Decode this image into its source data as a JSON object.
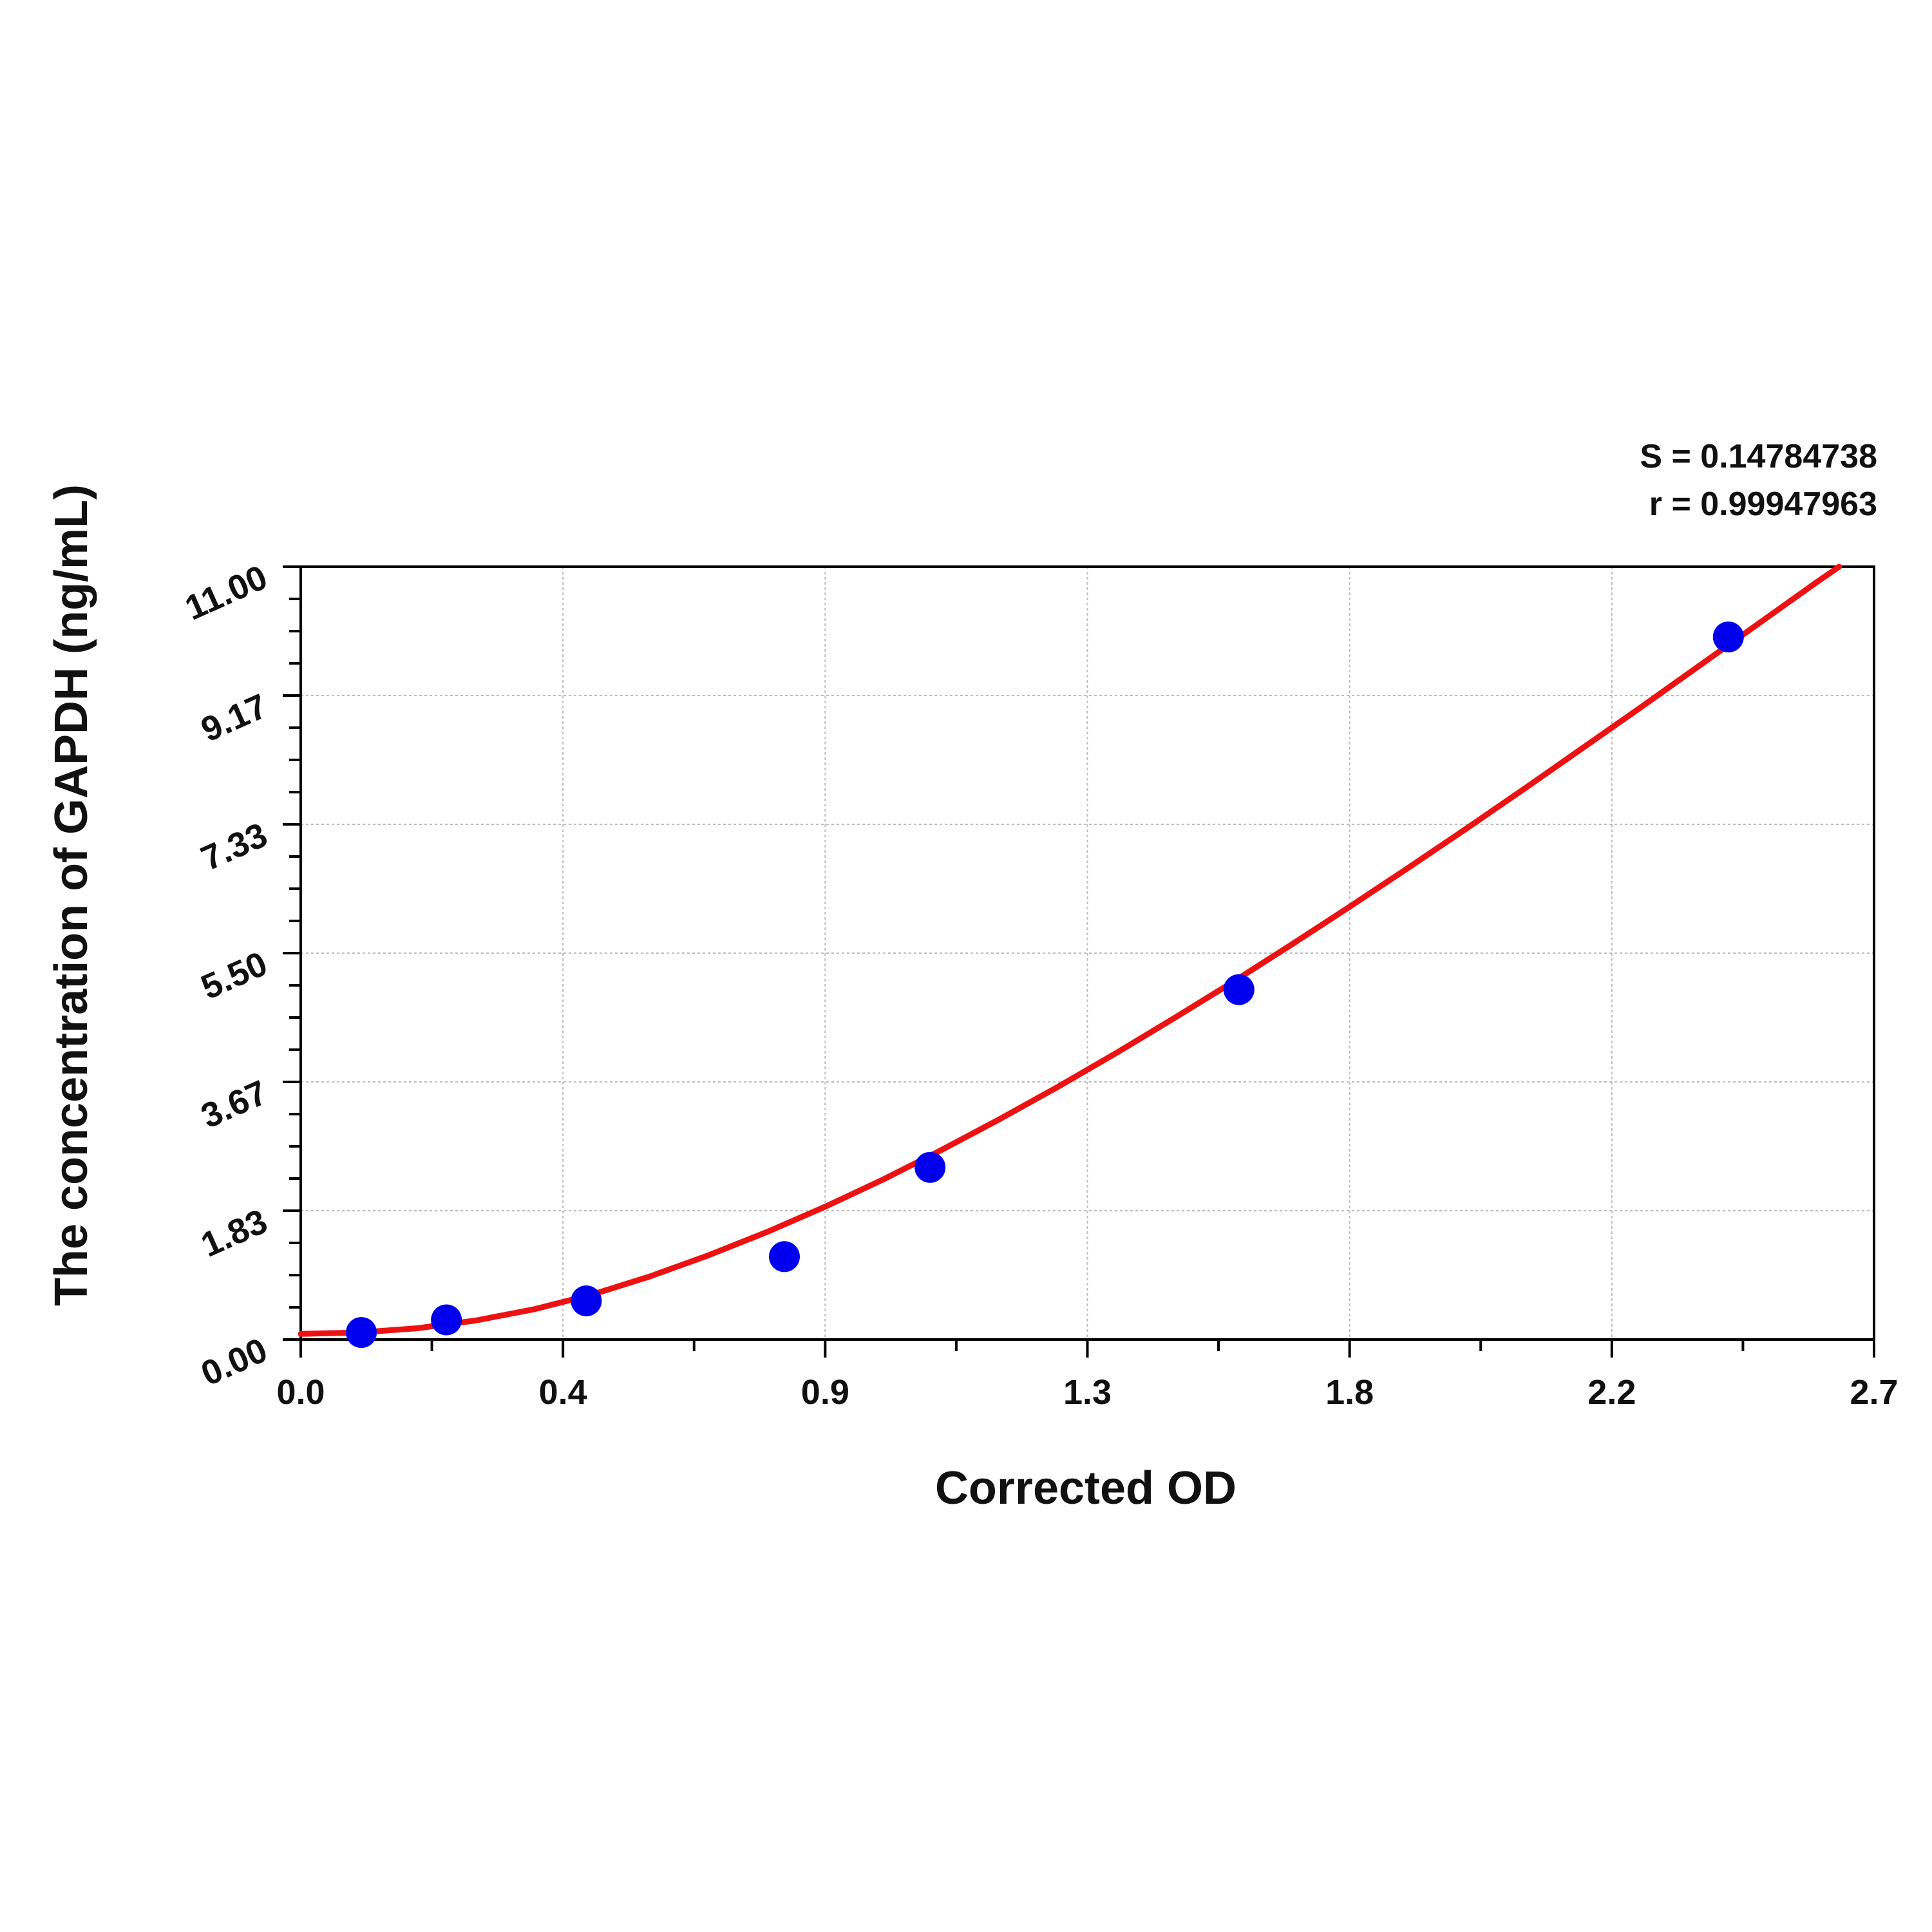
{
  "chart_data": {
    "type": "scatter",
    "xlabel": "Corrected OD",
    "ylabel": "The concentration of GAPDH (ng/mL)",
    "xlim": [
      0.0,
      2.7
    ],
    "ylim": [
      0.0,
      11.0
    ],
    "x_ticks": [
      "0.0",
      "0.4",
      "0.9",
      "1.3",
      "1.8",
      "2.2",
      "2.7"
    ],
    "y_ticks": [
      "0.00",
      "1.83",
      "3.67",
      "5.50",
      "7.33",
      "9.17",
      "11.00"
    ],
    "grid": true,
    "stats": {
      "s_text": "S = 0.14784738",
      "r_text": "r = 0.99947963"
    },
    "series": [
      {
        "type": "scatter",
        "x": [
          0.104,
          0.25,
          0.49,
          0.83,
          1.08,
          1.61,
          2.45
        ],
        "y": [
          0.1,
          0.28,
          0.55,
          1.18,
          2.45,
          4.98,
          10.0
        ]
      },
      {
        "type": "line",
        "x": [
          0.0,
          0.1,
          0.2,
          0.3,
          0.4,
          0.5,
          0.6,
          0.7,
          0.8,
          0.9,
          1.0,
          1.1,
          1.2,
          1.3,
          1.4,
          1.5,
          1.6,
          1.7,
          1.8,
          1.9,
          2.0,
          2.1,
          2.2,
          2.3,
          2.4,
          2.5,
          2.6,
          2.64
        ],
        "y": [
          0.08,
          0.1,
          0.16,
          0.27,
          0.43,
          0.64,
          0.9,
          1.2,
          1.53,
          1.89,
          2.28,
          2.7,
          3.14,
          3.6,
          4.08,
          4.58,
          5.09,
          5.62,
          6.16,
          6.71,
          7.27,
          7.84,
          8.42,
          9.0,
          9.59,
          10.18,
          10.77,
          11.0
        ]
      }
    ],
    "colors": {
      "points": "#0000ee",
      "curve": "#ee1111",
      "grid": "#bbbbbb",
      "axis": "#000000"
    }
  }
}
